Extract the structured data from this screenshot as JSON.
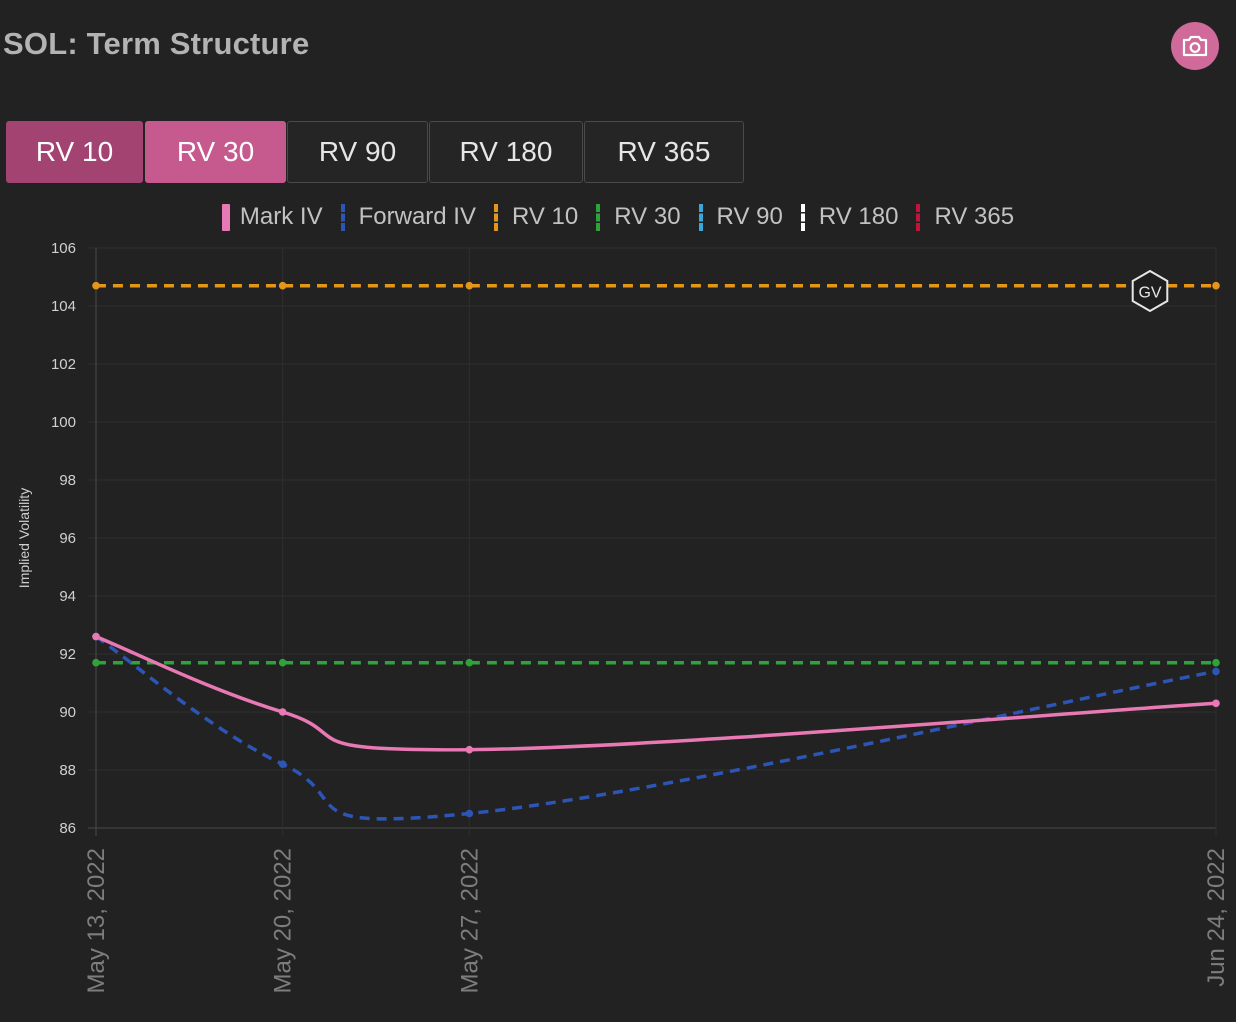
{
  "header": {
    "title": "SOL: Term Structure",
    "camera_icon": "camera-icon"
  },
  "tabs": [
    {
      "label": "RV 10",
      "state": "active"
    },
    {
      "label": "RV 30",
      "state": "active"
    },
    {
      "label": "RV 90",
      "state": "inactive"
    },
    {
      "label": "RV 180",
      "state": "inactive"
    },
    {
      "label": "RV 365",
      "state": "inactive"
    }
  ],
  "watermark": "GV",
  "colors": {
    "background": "#222222",
    "mark_iv": "#e879b4",
    "forward_iv": "#2d55b5",
    "rv10": "#e5961a",
    "rv30": "#2ea33a",
    "rv90": "#3aa7d8",
    "rv180": "#ffffff",
    "rv365": "#c0143c",
    "tab_active_1": "#a24372",
    "tab_active_2": "#c65a8e"
  },
  "chart_data": {
    "type": "line",
    "title": "",
    "xlabel": "",
    "ylabel": "Implied Volatility",
    "ylim": [
      86,
      106
    ],
    "yticks": [
      86,
      88,
      90,
      92,
      94,
      96,
      98,
      100,
      102,
      104,
      106
    ],
    "x": [
      "May 13, 2022",
      "May 20, 2022",
      "May 27, 2022",
      "Jun 24, 2022"
    ],
    "x_days": [
      0,
      7,
      14,
      42
    ],
    "grid": true,
    "legend": {
      "position": "top",
      "entries": [
        "Mark IV",
        "Forward IV",
        "RV 10",
        "RV 30",
        "RV 90",
        "RV 180",
        "RV 365"
      ]
    },
    "series": [
      {
        "name": "Mark IV",
        "style": "solid",
        "color": "#e879b4",
        "values": [
          92.6,
          90.0,
          88.7,
          90.3
        ]
      },
      {
        "name": "Forward IV",
        "style": "dashed",
        "color": "#2d55b5",
        "values": [
          92.6,
          88.2,
          86.5,
          91.4
        ]
      },
      {
        "name": "RV 10",
        "style": "dashed",
        "color": "#e5961a",
        "values": [
          104.7,
          104.7,
          104.7,
          104.7
        ]
      },
      {
        "name": "RV 30",
        "style": "dashed",
        "color": "#2ea33a",
        "values": [
          91.7,
          91.7,
          91.7,
          91.7
        ]
      }
    ]
  }
}
